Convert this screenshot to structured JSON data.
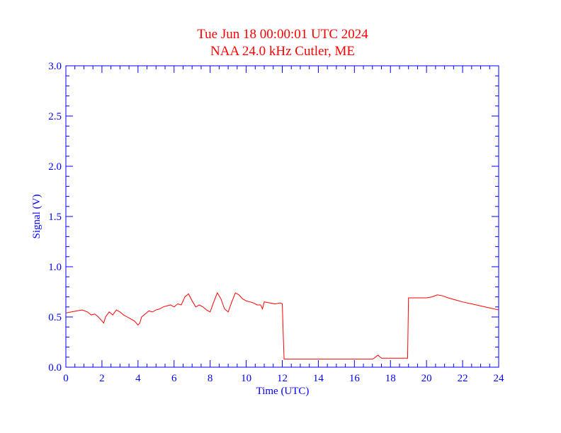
{
  "chart_data": {
    "type": "line",
    "title": "Tue Jun 18 00:00:01 UTC 2024",
    "subtitle": "NAA 24.0 kHz Cutler, ME",
    "xlabel": "Time (UTC)",
    "ylabel": "Signal (V)",
    "xlim": [
      0,
      24
    ],
    "ylim": [
      0,
      3.0
    ],
    "x_ticks": [
      "0",
      "2",
      "4",
      "6",
      "8",
      "10",
      "12",
      "14",
      "16",
      "18",
      "20",
      "22",
      "24"
    ],
    "y_ticks": [
      "0.0",
      "0.5",
      "1.0",
      "1.5",
      "2.0",
      "2.5",
      "3.0"
    ],
    "grid": false,
    "colors": {
      "axes": "#0000ff",
      "title": "#ff0000",
      "series": "#ff0000"
    },
    "series": [
      {
        "x": [
          0,
          0.3,
          0.6,
          0.9,
          1.2,
          1.4,
          1.6,
          1.8,
          2.0,
          2.1,
          2.2,
          2.4,
          2.6,
          2.8,
          3.0,
          3.2,
          3.4,
          3.6,
          3.8,
          4.0,
          4.1,
          4.2,
          4.4,
          4.6,
          4.8,
          5.0,
          5.2,
          5.4,
          5.6,
          5.8,
          6.0,
          6.2,
          6.4,
          6.6,
          6.8,
          7.0,
          7.2,
          7.4,
          7.6,
          7.8,
          8.0,
          8.2,
          8.4,
          8.6,
          8.8,
          9.0,
          9.2,
          9.4,
          9.6,
          9.8,
          10.0,
          10.2,
          10.4,
          10.6,
          10.8,
          10.9,
          11.0,
          11.3,
          11.6,
          11.9,
          12.0,
          12.05,
          12.1,
          13.0,
          14.0,
          15.0,
          16.0,
          17.0,
          17.1,
          17.3,
          17.5,
          18.0,
          18.5,
          18.9,
          18.95,
          19.0,
          19.5,
          20.0,
          20.3,
          20.6,
          20.9,
          21.2,
          21.6,
          22.0,
          22.5,
          23.0,
          23.5,
          24.0
        ],
        "y": [
          0.54,
          0.55,
          0.56,
          0.57,
          0.55,
          0.52,
          0.53,
          0.5,
          0.46,
          0.44,
          0.5,
          0.55,
          0.52,
          0.57,
          0.55,
          0.52,
          0.5,
          0.48,
          0.46,
          0.42,
          0.44,
          0.5,
          0.53,
          0.56,
          0.55,
          0.57,
          0.58,
          0.6,
          0.61,
          0.62,
          0.6,
          0.63,
          0.62,
          0.7,
          0.73,
          0.66,
          0.6,
          0.62,
          0.6,
          0.57,
          0.55,
          0.65,
          0.74,
          0.68,
          0.58,
          0.55,
          0.65,
          0.74,
          0.72,
          0.68,
          0.66,
          0.65,
          0.64,
          0.62,
          0.62,
          0.58,
          0.65,
          0.64,
          0.63,
          0.64,
          0.63,
          0.35,
          0.08,
          0.08,
          0.08,
          0.08,
          0.08,
          0.08,
          0.09,
          0.12,
          0.09,
          0.09,
          0.09,
          0.09,
          0.09,
          0.69,
          0.69,
          0.69,
          0.7,
          0.72,
          0.71,
          0.69,
          0.67,
          0.65,
          0.63,
          0.61,
          0.59,
          0.57
        ]
      }
    ]
  }
}
